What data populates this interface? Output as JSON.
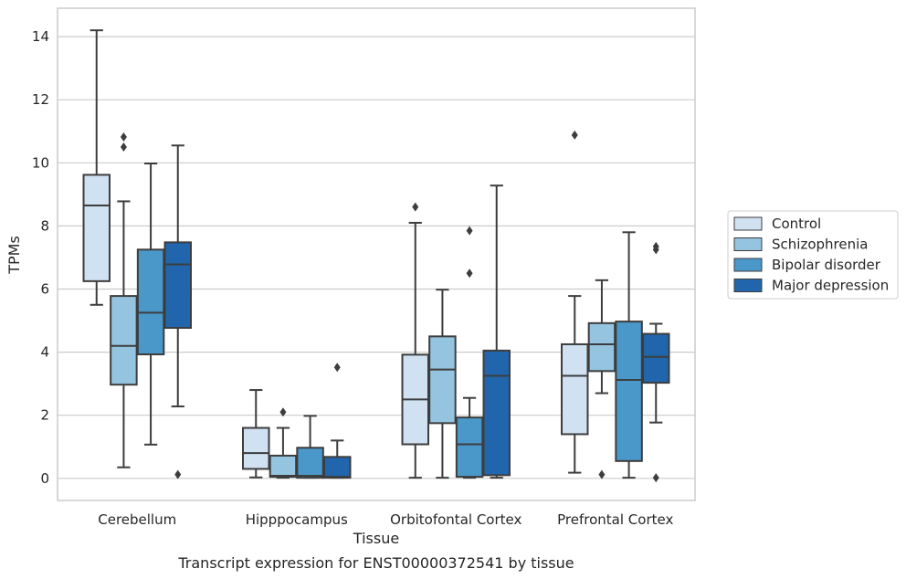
{
  "chart_data": {
    "type": "box",
    "caption": "Transcript expression for ENST00000372541 by tissue",
    "xlabel": "Tissue",
    "ylabel": "TPMs",
    "ylim": [
      -0.7,
      14.9
    ],
    "yticks": [
      0,
      2,
      4,
      6,
      8,
      10,
      12,
      14
    ],
    "grid": true,
    "legend_position": "right",
    "categories": [
      "Cerebellum",
      "Hipppocampus",
      "Orbitofontal Cortex",
      "Prefrontal Cortex"
    ],
    "series": [
      {
        "name": "Control",
        "color": "#d0e1f2",
        "boxes": [
          {
            "whislo": 5.5,
            "q1": 6.25,
            "med": 8.65,
            "q3": 9.62,
            "whishi": 14.2,
            "fliers": []
          },
          {
            "whislo": 0.03,
            "q1": 0.3,
            "med": 0.8,
            "q3": 1.6,
            "whishi": 2.8,
            "fliers": []
          },
          {
            "whislo": 0.02,
            "q1": 1.08,
            "med": 2.5,
            "q3": 3.92,
            "whishi": 8.1,
            "fliers": [
              8.6
            ]
          },
          {
            "whislo": 0.18,
            "q1": 1.4,
            "med": 3.25,
            "q3": 4.25,
            "whishi": 5.78,
            "fliers": [
              10.88
            ]
          }
        ]
      },
      {
        "name": "Schizophrenia",
        "color": "#94c4df",
        "boxes": [
          {
            "whislo": 0.35,
            "q1": 2.97,
            "med": 4.2,
            "q3": 5.78,
            "whishi": 8.78,
            "fliers": [
              10.5,
              10.82
            ]
          },
          {
            "whislo": 0.02,
            "q1": 0.05,
            "med": 0.08,
            "q3": 0.72,
            "whishi": 1.6,
            "fliers": [
              2.1
            ]
          },
          {
            "whislo": 0.02,
            "q1": 1.75,
            "med": 3.45,
            "q3": 4.5,
            "whishi": 5.98,
            "fliers": []
          },
          {
            "whislo": 2.7,
            "q1": 3.4,
            "med": 4.25,
            "q3": 4.92,
            "whishi": 6.28,
            "fliers": [
              0.12
            ]
          }
        ]
      },
      {
        "name": "Bipolar disorder",
        "color": "#4a98c9",
        "boxes": [
          {
            "whislo": 1.07,
            "q1": 3.93,
            "med": 5.25,
            "q3": 7.25,
            "whishi": 9.98,
            "fliers": []
          },
          {
            "whislo": 0.02,
            "q1": 0.02,
            "med": 0.08,
            "q3": 0.97,
            "whishi": 1.98,
            "fliers": []
          },
          {
            "whislo": 0.02,
            "q1": 0.05,
            "med": 1.08,
            "q3": 1.93,
            "whishi": 2.55,
            "fliers": [
              6.5,
              7.85
            ]
          },
          {
            "whislo": 0.02,
            "q1": 0.55,
            "med": 3.12,
            "q3": 4.97,
            "whishi": 7.8,
            "fliers": []
          }
        ]
      },
      {
        "name": "Major depression",
        "color": "#2166ac",
        "boxes": [
          {
            "whislo": 2.28,
            "q1": 4.77,
            "med": 6.78,
            "q3": 7.48,
            "whishi": 10.55,
            "fliers": [
              0.12
            ]
          },
          {
            "whislo": 0.02,
            "q1": 0.02,
            "med": 0.05,
            "q3": 0.68,
            "whishi": 1.2,
            "fliers": [
              3.52
            ]
          },
          {
            "whislo": 0.02,
            "q1": 0.1,
            "med": 3.25,
            "q3": 4.05,
            "whishi": 9.28,
            "fliers": []
          },
          {
            "whislo": 1.77,
            "q1": 3.03,
            "med": 3.85,
            "q3": 4.58,
            "whishi": 4.9,
            "fliers": [
              0.02,
              7.25,
              7.35
            ]
          }
        ]
      }
    ]
  }
}
